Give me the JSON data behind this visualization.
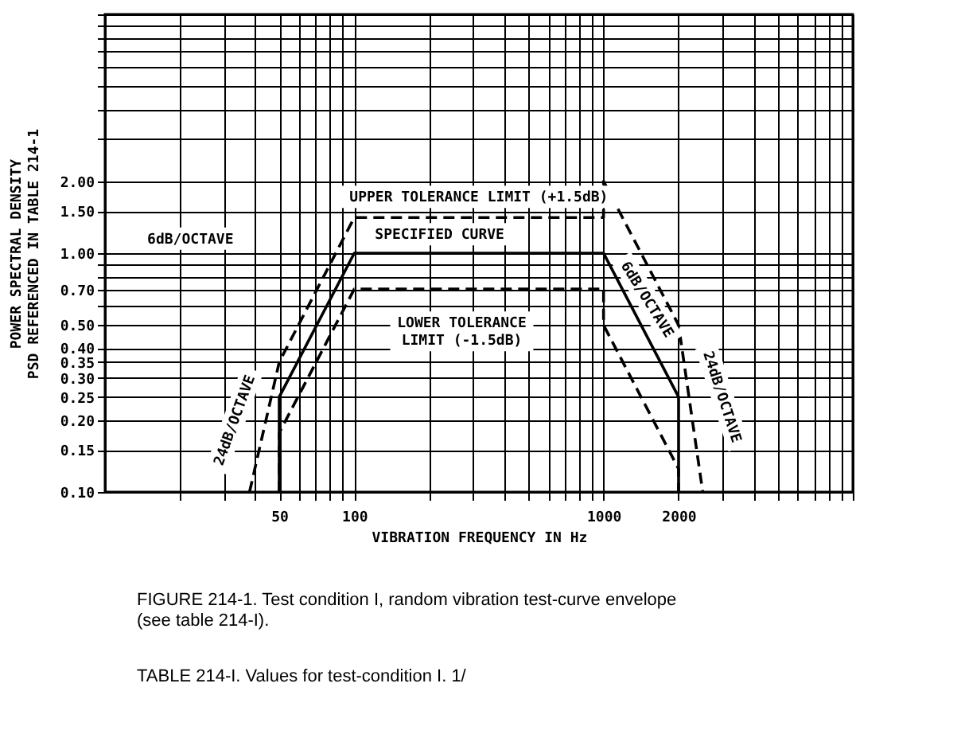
{
  "chart_data": {
    "type": "line",
    "xlabel": "VIBRATION FREQUENCY IN Hz",
    "ylabel": "POWER SPECTRAL DENSITY\nPSD REFERENCED IN TABLE 214-1",
    "log": "xy",
    "grid": true,
    "marker": "none",
    "xlim": [
      10,
      10000
    ],
    "xticks": [
      {
        "value": 20,
        "label": null
      },
      {
        "value": 30,
        "label": null
      },
      {
        "value": 40,
        "label": null
      },
      50,
      {
        "value": 60,
        "label": null
      },
      {
        "value": 70,
        "label": null
      },
      {
        "value": 80,
        "label": null
      },
      {
        "value": 90,
        "label": null
      },
      100,
      {
        "value": 200,
        "label": null
      },
      {
        "value": 300,
        "label": null
      },
      {
        "value": 400,
        "label": null
      },
      {
        "value": 500,
        "label": null
      },
      {
        "value": 600,
        "label": null
      },
      {
        "value": 700,
        "label": null
      },
      {
        "value": 800,
        "label": null
      },
      {
        "value": 900,
        "label": null
      },
      1000,
      2000,
      {
        "value": 3000,
        "label": null
      },
      {
        "value": 4000,
        "label": null
      },
      {
        "value": 5000,
        "label": null
      },
      {
        "value": 6000,
        "label": null
      },
      {
        "value": 7000,
        "label": null
      },
      {
        "value": 8000,
        "label": null
      },
      {
        "value": 9000,
        "label": null
      },
      {
        "value": 10000,
        "label": null
      }
    ],
    "ylim": [
      0.1,
      10
    ],
    "yticks": [
      {
        "value": 0.1,
        "label": "0.10"
      },
      {
        "value": 0.15,
        "label": "0.15"
      },
      {
        "value": 0.2,
        "label": "0.20"
      },
      {
        "value": 0.25,
        "label": "0.25"
      },
      {
        "value": 0.3,
        "label": "0.30"
      },
      {
        "value": 0.35,
        "label": "0.35"
      },
      {
        "value": 0.4,
        "label": "0.40"
      },
      {
        "value": 0.5,
        "label": "0.50"
      },
      {
        "value": 0.6,
        "label": null
      },
      {
        "value": 0.7,
        "label": "0.70"
      },
      {
        "value": 0.8,
        "label": null
      },
      {
        "value": 0.9,
        "label": null
      },
      {
        "value": 1,
        "label": "1.00"
      },
      {
        "value": 1.5,
        "label": "1.50"
      },
      {
        "value": 2,
        "label": "2.00"
      },
      {
        "value": 3,
        "label": null
      },
      {
        "value": 4,
        "label": null
      },
      {
        "value": 5,
        "label": null
      },
      {
        "value": 6,
        "label": null
      },
      {
        "value": 7,
        "label": null
      },
      {
        "value": 8,
        "label": null
      },
      {
        "value": 9,
        "label": null
      },
      {
        "value": 10,
        "label": null
      }
    ],
    "series": [
      {
        "color": "#000000",
        "line_style": "solid",
        "x": [
          50,
          50,
          100,
          1000,
          2000,
          2000
        ],
        "values": [
          0.1,
          0.25,
          1.0,
          1.0,
          0.25,
          0.1
        ]
      },
      {
        "color": "#000000",
        "line_style": "dashed",
        "x": [
          38,
          50,
          100,
          1000,
          1000,
          2000,
          2500
        ],
        "values": [
          0.1,
          0.35,
          1.41,
          1.41,
          2.0,
          0.5,
          0.1
        ]
      },
      {
        "color": "#000000",
        "line_style": "dashed",
        "x": [
          50,
          50,
          100,
          1000,
          1000,
          2000,
          2000
        ],
        "values": [
          0.1,
          0.177,
          0.707,
          0.707,
          0.5,
          0.125,
          0.1
        ]
      }
    ],
    "annotations": [
      "UPPER TOLERANCE LIMIT (+1.5dB)",
      "SPECIFIED CURVE",
      "LOWER TOLERANCE\nLIMIT (-1.5dB)",
      "6dB/OCTAVE",
      "24dB/OCTAVE",
      "6dB/OCTAVE",
      "24dB/OCTAVE",
      "FIGURE 214-1.  Test condition I, random vibration test-curve envelope\n(see table 214-I).",
      "TABLE 214-I.  Values for test-condition I.  1/"
    ]
  }
}
